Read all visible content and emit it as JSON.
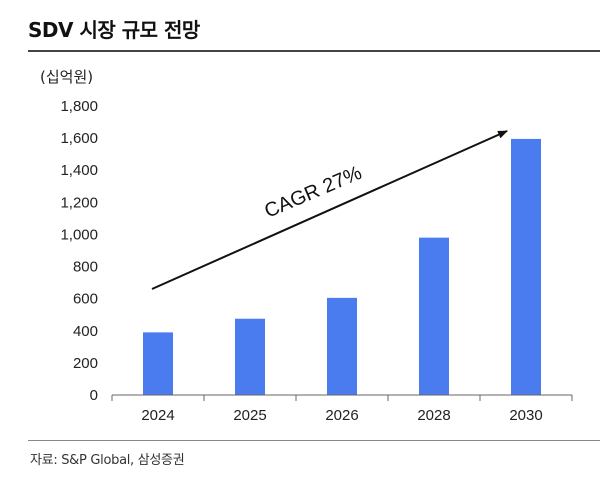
{
  "header": {
    "title": "SDV 시장 규모 전망"
  },
  "footer": {
    "source": "자료: S&P Global, 삼성증권"
  },
  "chart_data": {
    "type": "bar",
    "title": "SDV 시장 규모 전망",
    "unit_label": "(십억원)",
    "categories": [
      "2024",
      "2025",
      "2026",
      "2028",
      "2030"
    ],
    "values": [
      390,
      475,
      605,
      980,
      1595
    ],
    "ylim": [
      0,
      1800
    ],
    "yticks": [
      0,
      200,
      400,
      600,
      800,
      1000,
      1200,
      1400,
      1600,
      1800
    ],
    "ytick_labels": [
      "0",
      "200",
      "400",
      "600",
      "800",
      "1,000",
      "1,200",
      "1,400",
      "1,600",
      "1,800"
    ],
    "bar_color": "#4a7cf0",
    "grid": false,
    "annotation": {
      "text": "CAGR 27%",
      "type": "trend-arrow"
    }
  }
}
